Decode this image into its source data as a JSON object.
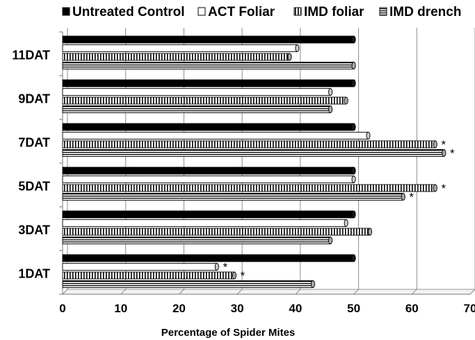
{
  "chart_data": {
    "type": "bar",
    "orientation": "horizontal",
    "categories": [
      "1DAT",
      "3DAT",
      "5DAT",
      "7DAT",
      "9DAT",
      "11DAT"
    ],
    "series": [
      {
        "name": "Untreated Control",
        "values": [
          50,
          50,
          50,
          50,
          50,
          50
        ],
        "pattern": "solid-black"
      },
      {
        "name": "ACT Foliar",
        "values": [
          26.5,
          48.7,
          50,
          52.5,
          46,
          40.3
        ],
        "pattern": "white"
      },
      {
        "name": "IMD foliar",
        "values": [
          29.5,
          52.8,
          64,
          64,
          48.7,
          39
        ]
      },
      {
        "name": "IMD drench",
        "values": [
          43,
          46,
          58.5,
          65.5,
          46,
          50
        ]
      }
    ],
    "significance": [
      {
        "category": "1DAT",
        "series": "ACT Foliar",
        "label": "*"
      },
      {
        "category": "1DAT",
        "series": "IMD foliar",
        "label": "*"
      },
      {
        "category": "5DAT",
        "series": "IMD foliar",
        "label": "*"
      },
      {
        "category": "5DAT",
        "series": "IMD drench",
        "label": "*"
      },
      {
        "category": "7DAT",
        "series": "IMD foliar",
        "label": "*"
      },
      {
        "category": "7DAT",
        "series": "IMD drench",
        "label": "*"
      }
    ],
    "xlabel": "Percentage of Spider Mites",
    "ylabel": "",
    "xlim": [
      0,
      70
    ],
    "xticks": [
      "0",
      "10",
      "20",
      "30",
      "40",
      "50",
      "60",
      "70"
    ],
    "grid": "vertical gridlines on",
    "legend_position": "top",
    "colors": {
      "black": "#000000",
      "white": "#ffffff",
      "grid": "#8c8c8c",
      "bar_outline": "#000000"
    }
  }
}
